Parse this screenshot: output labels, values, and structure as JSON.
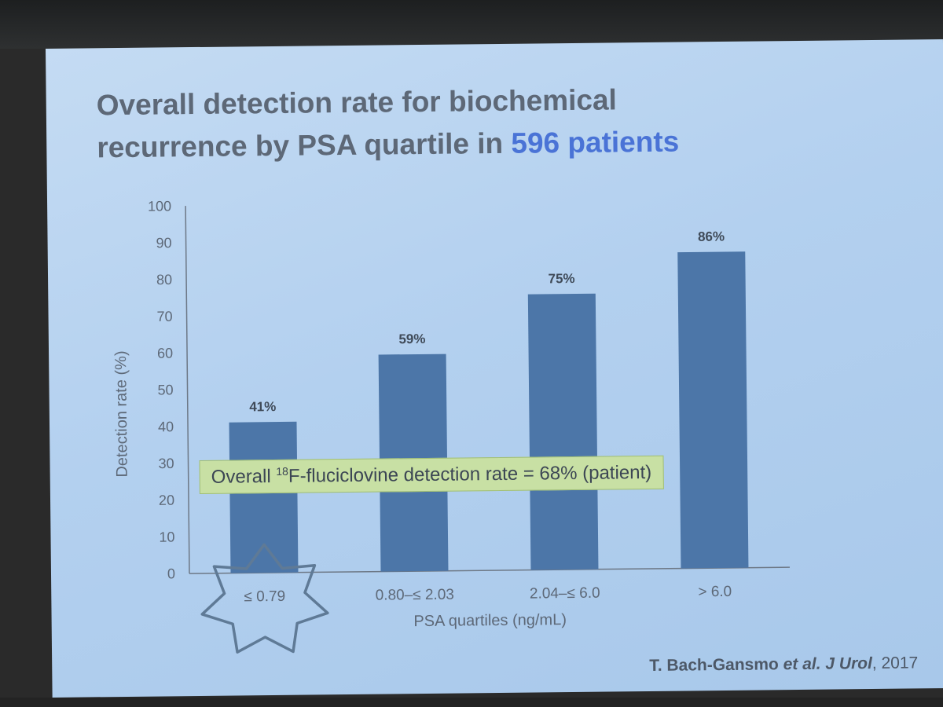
{
  "slide": {
    "title_line1": "Overall detection rate for biochemical",
    "title_line2": "recurrence by PSA quartile in",
    "title_accent": "596 patients",
    "callout_prefix": "Overall ",
    "callout_sup": "18",
    "callout_suffix": "F-fluciclovine detection rate = 68% (patient)",
    "citation_author": "T. Bach-Gansmo",
    "citation_etal": "et al.",
    "citation_journal": "J Urol",
    "citation_year": ", 2017"
  },
  "colors": {
    "bar": "#4c76a8",
    "title": "#5d6877",
    "accent": "#4a73d6",
    "callout_bg": "#c8e0a4"
  },
  "chart_data": {
    "type": "bar",
    "title": "Overall detection rate for biochemical recurrence by PSA quartile in 596 patients",
    "xlabel": "PSA quartiles (ng/mL)",
    "ylabel": "Detection rate (%)",
    "categories": [
      "≤ 0.79",
      "0.80–≤ 2.03",
      "2.04–≤ 6.0",
      "> 6.0"
    ],
    "values": [
      41,
      59,
      75,
      86
    ],
    "value_labels": [
      "41%",
      "59%",
      "75%",
      "86%"
    ],
    "ylim": [
      0,
      100
    ],
    "yticks": [
      0,
      10,
      20,
      30,
      40,
      50,
      60,
      70,
      80,
      90,
      100
    ],
    "grid": false,
    "highlighted_category": "≤ 0.79"
  }
}
